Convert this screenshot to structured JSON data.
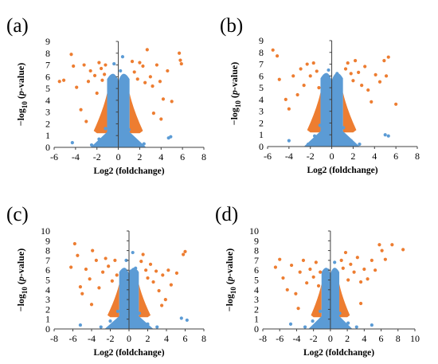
{
  "colors": {
    "significant": "#ED7D31",
    "non_significant": "#5B9BD5",
    "axis": "#404040"
  },
  "chart_data": [
    {
      "type": "scatter",
      "panel_label": "(a)",
      "xlabel": "Log2 (foldchange)",
      "ylabel": {
        "prefix": "−log",
        "sub": "10",
        "open": " (",
        "italic": "p",
        "suffix": "-value)"
      },
      "xlim": [
        -6,
        8
      ],
      "ylim": [
        0,
        9
      ],
      "xticks": [
        -6,
        -4,
        -2,
        0,
        2,
        4,
        6,
        8
      ],
      "yticks": [
        0,
        1,
        2,
        3,
        4,
        5,
        6,
        7,
        8,
        9
      ],
      "series": [
        {
          "color_role": "significant",
          "points": [
            [
              -5.5,
              5.6
            ],
            [
              -5.1,
              5.7
            ],
            [
              -4.4,
              7.9
            ],
            [
              -4.2,
              6.9
            ],
            [
              -3.9,
              5.1
            ],
            [
              -3.5,
              3.2
            ],
            [
              -3.2,
              7.0
            ],
            [
              -2.8,
              5.6
            ],
            [
              -2.6,
              6.5
            ],
            [
              -2.2,
              6.1
            ],
            [
              -2.0,
              4.6
            ],
            [
              -1.8,
              7.2
            ],
            [
              -1.6,
              6.7
            ],
            [
              -1.5,
              5.7
            ],
            [
              -1.3,
              6.2
            ],
            [
              -1.2,
              7.0
            ],
            [
              1.3,
              7.3
            ],
            [
              1.5,
              6.4
            ],
            [
              1.8,
              5.8
            ],
            [
              2.0,
              7.2
            ],
            [
              2.3,
              6.9
            ],
            [
              2.5,
              5.5
            ],
            [
              2.7,
              8.3
            ],
            [
              3.0,
              6.0
            ],
            [
              3.2,
              5.2
            ],
            [
              3.6,
              7.0
            ],
            [
              3.9,
              5.6
            ],
            [
              4.2,
              4.1
            ],
            [
              4.6,
              6.5
            ],
            [
              5.0,
              3.9
            ],
            [
              5.7,
              8.0
            ],
            [
              5.8,
              7.4
            ],
            [
              5.9,
              7.1
            ],
            [
              3.3,
              2.9
            ],
            [
              -3.0,
              2.2
            ],
            [
              4.0,
              2.4
            ]
          ]
        },
        {
          "color_role": "non_significant",
          "points": [
            [
              -2.5,
              0.2
            ],
            [
              -1.8,
              0.7
            ],
            [
              -1.2,
              1.6
            ],
            [
              -0.6,
              4.9
            ],
            [
              -0.4,
              7.1
            ],
            [
              -0.2,
              5.8
            ],
            [
              0.2,
              6.5
            ],
            [
              0.4,
              7.7
            ],
            [
              0.6,
              5.5
            ],
            [
              1.0,
              1.5
            ],
            [
              1.6,
              0.6
            ],
            [
              2.4,
              0.3
            ],
            [
              4.7,
              0.8
            ],
            [
              4.9,
              0.9
            ],
            [
              -4.3,
              0.4
            ]
          ]
        }
      ]
    },
    {
      "type": "scatter",
      "panel_label": "(b)",
      "xlabel": "Log2 (foldchange)",
      "ylabel": {
        "prefix": "−log",
        "sub": "10",
        "open": " (",
        "italic": "p",
        "suffix": "-value)"
      },
      "xlim": [
        -6,
        8
      ],
      "ylim": [
        0,
        9
      ],
      "xticks": [
        -6,
        -4,
        -2,
        0,
        2,
        4,
        6,
        8
      ],
      "yticks": [
        0,
        1,
        2,
        3,
        4,
        5,
        6,
        7,
        8,
        9
      ],
      "series": [
        {
          "color_role": "significant",
          "points": [
            [
              -5.5,
              8.2
            ],
            [
              -5.1,
              7.7
            ],
            [
              -4.9,
              5.7
            ],
            [
              -4.3,
              4.0
            ],
            [
              -4.0,
              3.2
            ],
            [
              -3.6,
              6.0
            ],
            [
              -3.2,
              4.4
            ],
            [
              -2.9,
              6.6
            ],
            [
              -2.6,
              5.2
            ],
            [
              -2.3,
              7.0
            ],
            [
              -2.0,
              6.0
            ],
            [
              -1.7,
              7.1
            ],
            [
              -1.4,
              6.4
            ],
            [
              -1.2,
              5.0
            ],
            [
              1.3,
              6.6
            ],
            [
              1.5,
              7.1
            ],
            [
              1.8,
              6.2
            ],
            [
              2.0,
              5.6
            ],
            [
              2.2,
              7.3
            ],
            [
              2.5,
              6.3
            ],
            [
              2.8,
              5.2
            ],
            [
              3.1,
              6.8
            ],
            [
              3.4,
              4.8
            ],
            [
              3.7,
              3.8
            ],
            [
              4.1,
              6.1
            ],
            [
              4.5,
              5.5
            ],
            [
              4.9,
              7.3
            ],
            [
              5.1,
              6.0
            ],
            [
              5.3,
              7.6
            ],
            [
              6.0,
              3.6
            ]
          ]
        },
        {
          "color_role": "non_significant",
          "points": [
            [
              -2.2,
              0.2
            ],
            [
              -1.6,
              0.9
            ],
            [
              -1.1,
              1.8
            ],
            [
              -0.6,
              5.4
            ],
            [
              -0.3,
              6.5
            ],
            [
              0.2,
              5.2
            ],
            [
              0.5,
              6.2
            ],
            [
              0.8,
              4.8
            ],
            [
              1.1,
              1.6
            ],
            [
              1.8,
              0.5
            ],
            [
              2.6,
              0.2
            ],
            [
              5.0,
              1.0
            ],
            [
              5.3,
              0.9
            ],
            [
              -4.0,
              0.5
            ]
          ]
        }
      ]
    },
    {
      "type": "scatter",
      "panel_label": "(c)",
      "xlabel": "Log2 (foldchange)",
      "ylabel": {
        "prefix": "−log",
        "sub": "10",
        "open": " (",
        "italic": "p",
        "suffix": "-value)"
      },
      "xlim": [
        -8,
        8
      ],
      "ylim": [
        0,
        10
      ],
      "xticks": [
        -8,
        -6,
        -4,
        -2,
        0,
        2,
        4,
        6,
        8
      ],
      "yticks": [
        0,
        1,
        2,
        3,
        4,
        5,
        6,
        7,
        8,
        9,
        10
      ],
      "series": [
        {
          "color_role": "significant",
          "points": [
            [
              -6.2,
              6.3
            ],
            [
              -5.8,
              8.7
            ],
            [
              -5.5,
              7.5
            ],
            [
              -5.2,
              4.3
            ],
            [
              -5.0,
              3.6
            ],
            [
              -4.6,
              6.1
            ],
            [
              -4.2,
              5.1
            ],
            [
              -3.9,
              8.0
            ],
            [
              -3.5,
              7.0
            ],
            [
              -3.2,
              4.2
            ],
            [
              -2.8,
              5.8
            ],
            [
              -2.5,
              7.2
            ],
            [
              -2.2,
              6.4
            ],
            [
              -1.8,
              4.9
            ],
            [
              -1.5,
              7.0
            ],
            [
              -1.3,
              5.5
            ],
            [
              1.3,
              6.9
            ],
            [
              1.5,
              7.6
            ],
            [
              1.8,
              6.0
            ],
            [
              2.0,
              5.2
            ],
            [
              2.3,
              6.6
            ],
            [
              2.6,
              4.8
            ],
            [
              2.9,
              5.9
            ],
            [
              3.2,
              3.9
            ],
            [
              3.6,
              5.5
            ],
            [
              3.9,
              3.0
            ],
            [
              4.2,
              6.0
            ],
            [
              4.5,
              4.5
            ],
            [
              5.1,
              5.7
            ],
            [
              5.8,
              7.6
            ],
            [
              6.0,
              7.9
            ],
            [
              3.5,
              2.4
            ],
            [
              -4.0,
              2.5
            ]
          ]
        },
        {
          "color_role": "non_significant",
          "points": [
            [
              -3.0,
              0.2
            ],
            [
              -2.0,
              0.8
            ],
            [
              -1.2,
              1.8
            ],
            [
              -0.6,
              6.0
            ],
            [
              -0.3,
              7.0
            ],
            [
              0.2,
              5.9
            ],
            [
              0.4,
              7.8
            ],
            [
              0.7,
              6.2
            ],
            [
              1.1,
              1.6
            ],
            [
              2.0,
              0.5
            ],
            [
              3.0,
              0.2
            ],
            [
              5.6,
              1.1
            ],
            [
              6.2,
              0.9
            ],
            [
              -5.2,
              0.4
            ]
          ]
        }
      ]
    },
    {
      "type": "scatter",
      "panel_label": "(d)",
      "xlabel": "Log2 (foldchange)",
      "ylabel": {
        "prefix": "−log",
        "sub": "10",
        "open": " (",
        "italic": "p",
        "suffix": "-value)"
      },
      "xlim": [
        -8,
        10
      ],
      "ylim": [
        0,
        10
      ],
      "xticks": [
        -8,
        -6,
        -4,
        -2,
        0,
        2,
        4,
        6,
        8,
        10
      ],
      "yticks": [
        0,
        1,
        2,
        3,
        4,
        5,
        6,
        7,
        8,
        9,
        10
      ],
      "series": [
        {
          "color_role": "significant",
          "points": [
            [
              -6.5,
              6.3
            ],
            [
              -6.0,
              7.1
            ],
            [
              -5.6,
              5.2
            ],
            [
              -5.1,
              4.0
            ],
            [
              -4.6,
              6.5
            ],
            [
              -4.1,
              3.6
            ],
            [
              -3.6,
              5.8
            ],
            [
              -3.2,
              7.0
            ],
            [
              -2.8,
              4.7
            ],
            [
              -2.4,
              6.1
            ],
            [
              -2.0,
              5.3
            ],
            [
              -1.7,
              6.8
            ],
            [
              -1.4,
              4.4
            ],
            [
              -1.2,
              5.8
            ],
            [
              1.3,
              7.0
            ],
            [
              1.5,
              6.2
            ],
            [
              1.8,
              7.8
            ],
            [
              2.1,
              5.0
            ],
            [
              2.4,
              6.6
            ],
            [
              2.8,
              5.8
            ],
            [
              3.2,
              7.3
            ],
            [
              3.6,
              4.8
            ],
            [
              4.0,
              6.1
            ],
            [
              4.4,
              5.1
            ],
            [
              4.9,
              7.0
            ],
            [
              5.3,
              6.0
            ],
            [
              5.8,
              8.6
            ],
            [
              6.1,
              8.0
            ],
            [
              6.5,
              7.1
            ],
            [
              7.3,
              8.6
            ],
            [
              8.6,
              8.1
            ],
            [
              3.6,
              2.6
            ],
            [
              -3.8,
              2.1
            ]
          ]
        },
        {
          "color_role": "non_significant",
          "points": [
            [
              -3.0,
              0.2
            ],
            [
              -2.1,
              0.8
            ],
            [
              -1.2,
              1.8
            ],
            [
              -0.6,
              5.1
            ],
            [
              -0.3,
              6.0
            ],
            [
              0.2,
              4.6
            ],
            [
              0.5,
              6.8
            ],
            [
              0.8,
              5.3
            ],
            [
              1.1,
              1.6
            ],
            [
              2.1,
              0.6
            ],
            [
              3.1,
              0.2
            ],
            [
              -4.7,
              0.5
            ],
            [
              4.9,
              0.4
            ]
          ]
        }
      ]
    }
  ]
}
